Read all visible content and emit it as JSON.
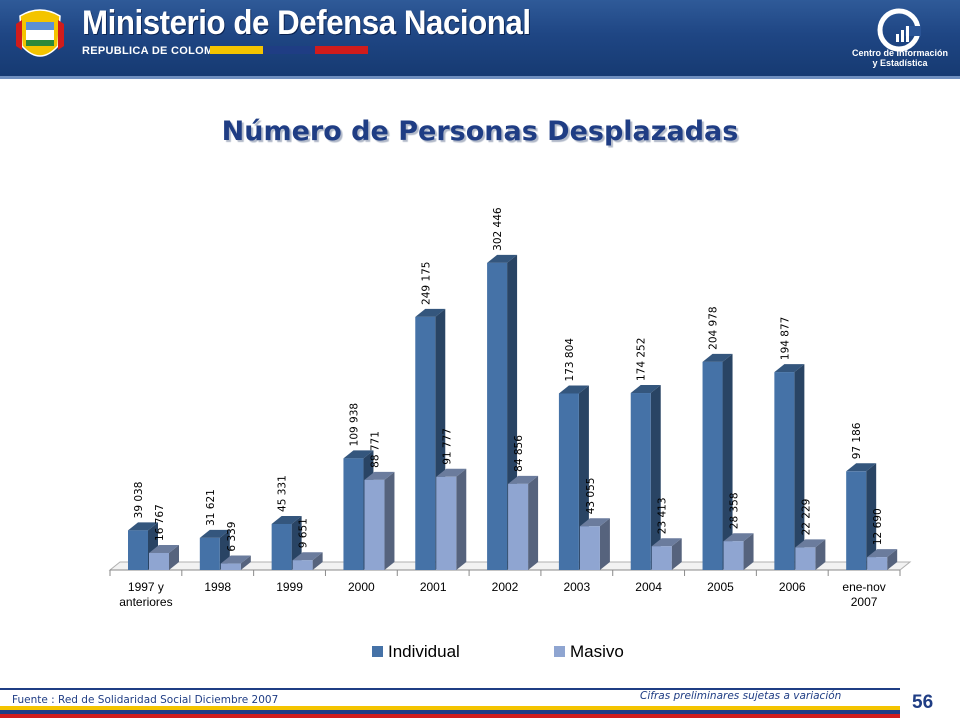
{
  "header": {
    "ministry_name": "Ministerio de Defensa Nacional",
    "republic": "REPUBLICA DE COLOMBIA",
    "center_name_line1": "Centro de Información",
    "center_name_line2": "y Estadística",
    "flag_colors": [
      "#f4c400",
      "#1f3d84",
      "#d01c1c"
    ]
  },
  "title": "Número de Personas Desplazadas",
  "footer": {
    "source": "Fuente : Red de Solidaridad Social  Diciembre 2007",
    "note": "Cifras preliminares sujetas a variación",
    "page_number": "56"
  },
  "chart_data": {
    "type": "bar",
    "title": "Número de Personas Desplazadas",
    "xlabel": "",
    "ylabel": "",
    "categories": [
      "1997 y anteriores",
      "1998",
      "1999",
      "2000",
      "2001",
      "2002",
      "2003",
      "2004",
      "2005",
      "2006",
      "ene-nov 2007"
    ],
    "series": [
      {
        "name": "Individual",
        "color": "#4572a7",
        "values": [
          39038,
          31621,
          45331,
          109938,
          249175,
          302446,
          173804,
          174252,
          204978,
          194877,
          97186
        ],
        "labels": [
          "39 038",
          "31 621",
          "45 331",
          "109 938",
          "249 175",
          "302 446",
          "173 804",
          "174 252",
          "204 978",
          "194 877",
          "97 186"
        ]
      },
      {
        "name": "Masivo",
        "color": "#8fa5d1",
        "values": [
          16767,
          6339,
          9651,
          88771,
          91777,
          84856,
          43055,
          23413,
          28358,
          22229,
          12690
        ],
        "labels": [
          "16 767",
          "6 339",
          "9 651",
          "88 771",
          "91 777",
          "84 856",
          "43 055",
          "23 413",
          "28 358",
          "22 229",
          "12 690"
        ]
      }
    ],
    "ylim": [
      0,
      320000
    ],
    "grid": false,
    "legend": "bottom"
  }
}
